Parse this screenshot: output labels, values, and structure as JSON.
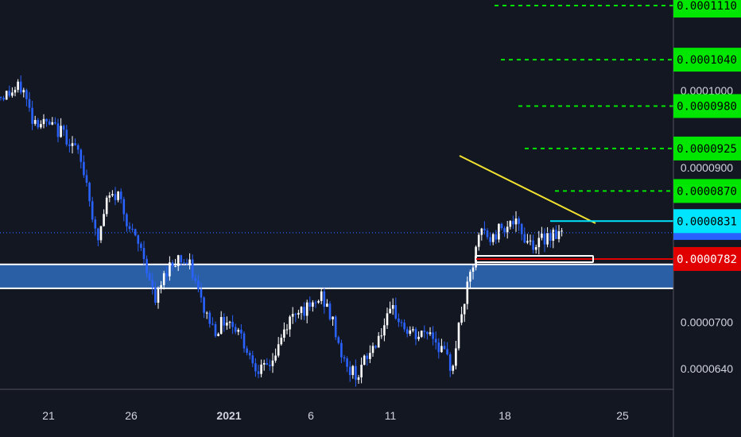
{
  "chart_data": {
    "type": "candlestick",
    "x_ticks": [
      "21",
      "26",
      "2021",
      "6",
      "11",
      "18",
      "25"
    ],
    "y_ticks": [
      "0.0000640",
      "0.0000700",
      "0.0000900",
      "0.0001000"
    ],
    "y_range": [
      6.2e-05,
      0.000115
    ],
    "last_price": 8.16e-05,
    "price_levels": [
      {
        "value": 0.000111,
        "label": "0.0001110",
        "color": "#00e600",
        "style": "dashed",
        "text_color": "#000000"
      },
      {
        "value": 0.000104,
        "label": "0.0001040",
        "color": "#00e600",
        "style": "dashed",
        "text_color": "#000000"
      },
      {
        "value": 9.8e-05,
        "label": "0.0000980",
        "color": "#00e600",
        "style": "dashed",
        "text_color": "#000000"
      },
      {
        "value": 9.25e-05,
        "label": "0.0000925",
        "color": "#00e600",
        "style": "dashed",
        "text_color": "#000000"
      },
      {
        "value": 8.7e-05,
        "label": "0.0000870",
        "color": "#00e600",
        "style": "dashed",
        "text_color": "#000000"
      },
      {
        "value": 8.31e-05,
        "label": "0.0000831",
        "color": "#00e5ff",
        "style": "solid",
        "text_color": "#000000"
      },
      {
        "value": 7.82e-05,
        "label": "0.0000782",
        "color": "#e00000",
        "style": "solid",
        "text_color": "#ffffff"
      }
    ],
    "support_zone": {
      "from": 7.44e-05,
      "to": 7.75e-05,
      "color": "#2a5fa5"
    },
    "trendline_color": "#f2e230",
    "candle_up_color": "#ffffff",
    "candle_down_color": "#2962ff",
    "grid": false
  }
}
